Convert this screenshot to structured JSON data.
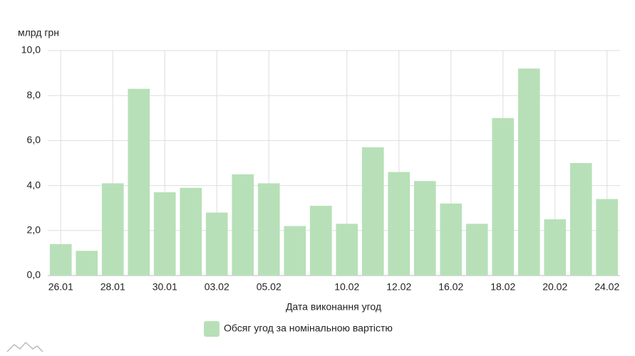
{
  "chart_data": {
    "type": "bar",
    "y_unit": "млрд грн",
    "x_label": "Дата виконання угод",
    "categories": [
      "26.01",
      null,
      "28.01",
      null,
      "30.01",
      null,
      "03.02",
      null,
      "05.02",
      null,
      null,
      "10.02",
      null,
      "12.02",
      null,
      "16.02",
      null,
      "18.02",
      null,
      "20.02",
      null,
      "24.02"
    ],
    "series": [
      {
        "name": "Обсяг угод за номінальною вартістю",
        "color": "#b7e0b8",
        "values": [
          1.4,
          1.1,
          4.1,
          8.3,
          3.7,
          3.9,
          2.8,
          4.5,
          4.1,
          2.2,
          3.1,
          2.3,
          5.7,
          4.6,
          4.2,
          3.2,
          2.3,
          7.0,
          9.2,
          2.5,
          5.0,
          3.4
        ]
      }
    ],
    "ylim": [
      0,
      10
    ],
    "yticks": [
      {
        "value": 0,
        "label": "0,0"
      },
      {
        "value": 2,
        "label": "2,0"
      },
      {
        "value": 4,
        "label": "4,0"
      },
      {
        "value": 6,
        "label": "6,0"
      },
      {
        "value": 8,
        "label": "8,0"
      },
      {
        "value": 10,
        "label": "10,0"
      }
    ],
    "grid": true,
    "legend": "bottom"
  }
}
